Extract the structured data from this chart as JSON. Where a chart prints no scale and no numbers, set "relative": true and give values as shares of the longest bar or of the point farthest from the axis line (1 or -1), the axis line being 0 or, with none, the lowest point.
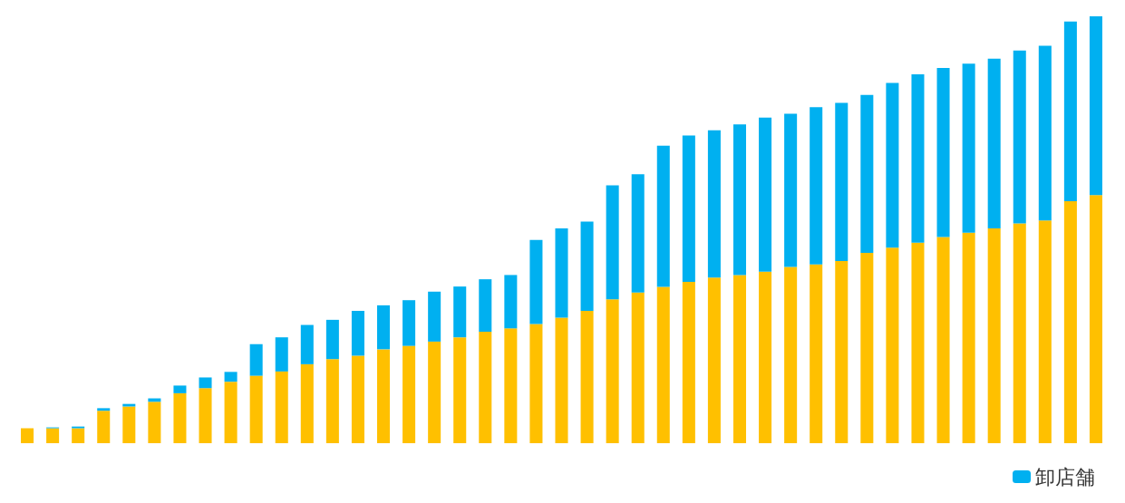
{
  "chart_data": {
    "type": "bar",
    "stacked": true,
    "relative": true,
    "legend": "bottom right",
    "categories": [
      null,
      null,
      null,
      null,
      null,
      null,
      null,
      null,
      null,
      null,
      null,
      null,
      null,
      null,
      null,
      null,
      null,
      null,
      null,
      null,
      null,
      null,
      null,
      null,
      null,
      null,
      null,
      null,
      null,
      null,
      null,
      null,
      null,
      null,
      null,
      null,
      null,
      null,
      null,
      null,
      null,
      null,
      null
    ],
    "series": [
      {
        "color": "#ffc000",
        "values": [
          0.035,
          0.035,
          0.035,
          0.076,
          0.086,
          0.097,
          0.117,
          0.129,
          0.144,
          0.158,
          0.168,
          0.185,
          0.197,
          0.205,
          0.22,
          0.228,
          0.238,
          0.248,
          0.261,
          0.269,
          0.279,
          0.294,
          0.31,
          0.337,
          0.353,
          0.366,
          0.378,
          0.388,
          0.394,
          0.402,
          0.413,
          0.419,
          0.427,
          0.446,
          0.458,
          0.47,
          0.483,
          0.493,
          0.503,
          0.515,
          0.522,
          0.567,
          0.581
        ]
      },
      {
        "name": "卸店舗",
        "color": "#00b0f0",
        "values": [
          0,
          0.002,
          0.004,
          0.006,
          0.006,
          0.008,
          0.018,
          0.025,
          0.023,
          0.074,
          0.08,
          0.092,
          0.092,
          0.105,
          0.103,
          0.107,
          0.117,
          0.119,
          0.123,
          0.125,
          0.197,
          0.209,
          0.209,
          0.267,
          0.277,
          0.331,
          0.343,
          0.345,
          0.353,
          0.361,
          0.359,
          0.368,
          0.37,
          0.37,
          0.386,
          0.394,
          0.396,
          0.396,
          0.398,
          0.405,
          0.409,
          0.421,
          0.419
        ]
      }
    ]
  }
}
